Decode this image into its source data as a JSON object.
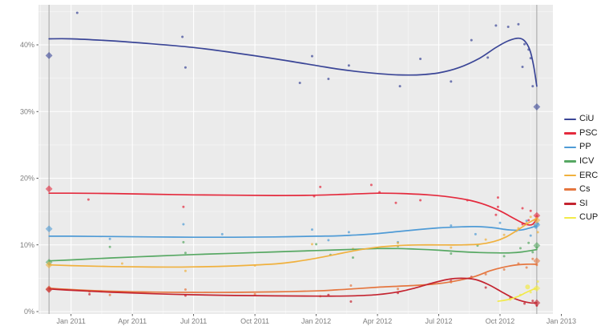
{
  "chart_data": {
    "type": "line",
    "title": "",
    "xlabel": "",
    "ylabel": "",
    "x_axis": {
      "ticks": [
        {
          "label": "Jan 2011",
          "t": 0
        },
        {
          "label": "Apr 2011",
          "t": 3
        },
        {
          "label": "Jul 2011",
          "t": 6
        },
        {
          "label": "Oct 2011",
          "t": 9
        },
        {
          "label": "Jan 2012",
          "t": 12
        },
        {
          "label": "Apr 2012",
          "t": 15
        },
        {
          "label": "Jul 2012",
          "t": 18
        },
        {
          "label": "Oct 2012",
          "t": 21
        },
        {
          "label": "Jan 2013",
          "t": 24
        }
      ],
      "minor_ticks_t": [
        -1.5,
        1.5,
        4.5,
        7.5,
        10.5,
        13.5,
        16.5,
        19.5,
        22.5
      ],
      "range_t": [
        -1.6,
        24.45
      ]
    },
    "y_axis": {
      "ticks": [
        {
          "label": "0%",
          "v": 0
        },
        {
          "label": "10%",
          "v": 10
        },
        {
          "label": "20%",
          "v": 20
        },
        {
          "label": "30%",
          "v": 30
        },
        {
          "label": "40%",
          "v": 40
        }
      ],
      "minor_ticks_v": [
        5,
        15,
        25,
        35,
        45
      ],
      "range_v": [
        -0.4,
        46
      ]
    },
    "elections": [
      {
        "name": "election-2010",
        "t": -1.08,
        "results": {
          "CiU": 38.4,
          "PSC": 18.4,
          "PP": 12.4,
          "ICV": 7.4,
          "ERC": 7.0,
          "Cs": 3.4,
          "SI": 3.3
        }
      },
      {
        "name": "election-2012",
        "t": 22.8,
        "results": {
          "CiU": 30.7,
          "PSC": 14.4,
          "PP": 13.0,
          "ICV": 9.9,
          "ERC": 13.7,
          "Cs": 7.6,
          "SI": 1.3,
          "CUP": 3.5
        }
      }
    ],
    "legend_position": "right",
    "series": [
      {
        "name": "CiU",
        "color": "#3b4697",
        "trend": [
          [
            -1.08,
            40.9
          ],
          [
            0,
            40.9
          ],
          [
            2,
            40.6
          ],
          [
            4,
            40.15
          ],
          [
            6,
            39.6
          ],
          [
            8,
            38.8
          ],
          [
            10,
            37.9
          ],
          [
            12,
            36.9
          ],
          [
            13,
            36.4
          ],
          [
            14,
            36.0
          ],
          [
            15,
            35.7
          ],
          [
            16,
            35.5
          ],
          [
            17,
            35.5
          ],
          [
            18,
            35.8
          ],
          [
            19,
            36.6
          ],
          [
            20,
            38.0
          ],
          [
            20.8,
            39.6
          ],
          [
            21.4,
            40.6
          ],
          [
            21.9,
            41.0
          ],
          [
            22.2,
            40.6
          ],
          [
            22.45,
            39.3
          ],
          [
            22.65,
            36.8
          ],
          [
            22.8,
            33.8
          ]
        ],
        "polls": [
          [
            0.3,
            44.8
          ],
          [
            5.45,
            41.2
          ],
          [
            5.6,
            36.6
          ],
          [
            11.2,
            34.3
          ],
          [
            11.8,
            38.3
          ],
          [
            12.6,
            34.9
          ],
          [
            13.6,
            36.9
          ],
          [
            16.1,
            33.8
          ],
          [
            17.1,
            37.9
          ],
          [
            18.6,
            34.5
          ],
          [
            19.6,
            40.7
          ],
          [
            20.4,
            38.1
          ],
          [
            20.8,
            42.9
          ],
          [
            21.4,
            42.7
          ],
          [
            21.9,
            43.1
          ],
          [
            22.1,
            36.7
          ],
          [
            22.2,
            40.1
          ],
          [
            22.4,
            39.3
          ],
          [
            22.5,
            38.0
          ],
          [
            22.6,
            33.8
          ]
        ]
      },
      {
        "name": "PSC",
        "color": "#e42a3d",
        "trend": [
          [
            -1.08,
            17.75
          ],
          [
            0,
            17.75
          ],
          [
            2,
            17.7
          ],
          [
            4,
            17.6
          ],
          [
            6,
            17.5
          ],
          [
            8,
            17.45
          ],
          [
            10,
            17.4
          ],
          [
            12,
            17.45
          ],
          [
            13.5,
            17.6
          ],
          [
            15,
            17.75
          ],
          [
            16.2,
            17.7
          ],
          [
            17.5,
            17.5
          ],
          [
            18.5,
            17.2
          ],
          [
            19.5,
            16.7
          ],
          [
            20.3,
            16.0
          ],
          [
            21.0,
            15.1
          ],
          [
            21.6,
            14.1
          ],
          [
            22.1,
            13.3
          ],
          [
            22.4,
            13.0
          ],
          [
            22.6,
            13.1
          ],
          [
            22.8,
            13.9
          ]
        ],
        "polls": [
          [
            0.85,
            16.8
          ],
          [
            5.5,
            15.7
          ],
          [
            11.9,
            17.3
          ],
          [
            12.2,
            18.7
          ],
          [
            14.7,
            19.0
          ],
          [
            15.1,
            17.9
          ],
          [
            15.9,
            16.3
          ],
          [
            17.1,
            16.7
          ],
          [
            19.4,
            16.7
          ],
          [
            20.8,
            14.5
          ],
          [
            20.9,
            17.1
          ],
          [
            20.9,
            15.7
          ],
          [
            22.1,
            15.5
          ],
          [
            22.1,
            13.1
          ],
          [
            22.4,
            13.7
          ],
          [
            22.5,
            15.1
          ],
          [
            22.8,
            14.3
          ]
        ]
      },
      {
        "name": "PP",
        "color": "#4f9bd6",
        "trend": [
          [
            -1.08,
            11.3
          ],
          [
            0,
            11.3
          ],
          [
            2,
            11.25
          ],
          [
            4,
            11.2
          ],
          [
            6,
            11.15
          ],
          [
            8,
            11.15
          ],
          [
            10,
            11.2
          ],
          [
            12,
            11.3
          ],
          [
            13,
            11.35
          ],
          [
            14,
            11.5
          ],
          [
            15,
            11.7
          ],
          [
            16,
            12.0
          ],
          [
            17,
            12.3
          ],
          [
            18,
            12.55
          ],
          [
            19,
            12.7
          ],
          [
            19.8,
            12.75
          ],
          [
            20.6,
            12.6
          ],
          [
            21.3,
            12.3
          ],
          [
            21.9,
            12.2
          ],
          [
            22.3,
            12.4
          ],
          [
            22.8,
            12.85
          ]
        ],
        "polls": [
          [
            1.9,
            10.9
          ],
          [
            5.5,
            13.1
          ],
          [
            7.4,
            11.6
          ],
          [
            11.8,
            12.3
          ],
          [
            12.6,
            10.7
          ],
          [
            13.6,
            11.9
          ],
          [
            16.0,
            10.4
          ],
          [
            18.6,
            12.9
          ],
          [
            19.8,
            11.6
          ],
          [
            21.0,
            13.3
          ],
          [
            21.8,
            12.1
          ],
          [
            22.3,
            13.6
          ],
          [
            22.5,
            11.4
          ],
          [
            22.75,
            12.6
          ],
          [
            22.85,
            13.2
          ]
        ]
      },
      {
        "name": "ICV",
        "color": "#57a863",
        "trend": [
          [
            -1.08,
            7.6
          ],
          [
            0,
            7.75
          ],
          [
            2,
            8.05
          ],
          [
            4,
            8.3
          ],
          [
            6,
            8.55
          ],
          [
            8,
            8.75
          ],
          [
            10,
            8.95
          ],
          [
            12,
            9.15
          ],
          [
            13,
            9.25
          ],
          [
            14,
            9.35
          ],
          [
            15,
            9.45
          ],
          [
            16,
            9.45
          ],
          [
            17,
            9.35
          ],
          [
            18,
            9.2
          ],
          [
            19,
            9.0
          ],
          [
            20,
            8.85
          ],
          [
            20.8,
            8.8
          ],
          [
            21.5,
            8.8
          ],
          [
            22.1,
            8.95
          ],
          [
            22.8,
            9.3
          ]
        ],
        "polls": [
          [
            1.9,
            9.7
          ],
          [
            5.5,
            10.4
          ],
          [
            5.6,
            8.8
          ],
          [
            12.0,
            10.1
          ],
          [
            12.7,
            8.5
          ],
          [
            13.8,
            8.1
          ],
          [
            16.0,
            9.8
          ],
          [
            18.6,
            8.7
          ],
          [
            19.9,
            9.9
          ],
          [
            21.2,
            8.3
          ],
          [
            22.0,
            9.5
          ],
          [
            22.4,
            10.3
          ],
          [
            22.6,
            8.9
          ],
          [
            22.8,
            9.6
          ]
        ]
      },
      {
        "name": "ERC",
        "color": "#f0b13e",
        "trend": [
          [
            -1.08,
            7.0
          ],
          [
            0,
            6.9
          ],
          [
            2,
            6.75
          ],
          [
            4,
            6.68
          ],
          [
            6,
            6.7
          ],
          [
            8,
            6.85
          ],
          [
            10,
            7.15
          ],
          [
            11,
            7.5
          ],
          [
            12,
            8.0
          ],
          [
            13,
            8.6
          ],
          [
            14,
            9.2
          ],
          [
            15,
            9.65
          ],
          [
            16,
            9.9
          ],
          [
            17,
            10.0
          ],
          [
            18,
            10.0
          ],
          [
            19,
            10.0
          ],
          [
            20,
            10.1
          ],
          [
            20.7,
            10.5
          ],
          [
            21.3,
            11.2
          ],
          [
            21.9,
            12.3
          ],
          [
            22.4,
            13.3
          ],
          [
            22.8,
            14.0
          ]
        ],
        "polls": [
          [
            2.5,
            7.2
          ],
          [
            5.6,
            6.1
          ],
          [
            9.0,
            6.9
          ],
          [
            11.8,
            10.1
          ],
          [
            13.8,
            9.4
          ],
          [
            16.0,
            10.3
          ],
          [
            18.6,
            9.6
          ],
          [
            20.3,
            10.8
          ],
          [
            21.2,
            11.5
          ],
          [
            21.9,
            12.5
          ],
          [
            22.3,
            13.3
          ],
          [
            22.5,
            14.2
          ],
          [
            22.7,
            12.9
          ],
          [
            22.85,
            11.9
          ]
        ]
      },
      {
        "name": "Cs",
        "color": "#e5763f",
        "trend": [
          [
            -1.08,
            3.5
          ],
          [
            0,
            3.3
          ],
          [
            2,
            3.05
          ],
          [
            4,
            2.92
          ],
          [
            6,
            2.88
          ],
          [
            8,
            2.88
          ],
          [
            10,
            2.95
          ],
          [
            12,
            3.1
          ],
          [
            13,
            3.25
          ],
          [
            14,
            3.45
          ],
          [
            15,
            3.65
          ],
          [
            16,
            3.8
          ],
          [
            17,
            3.95
          ],
          [
            18,
            4.2
          ],
          [
            19,
            4.7
          ],
          [
            19.8,
            5.3
          ],
          [
            20.5,
            6.1
          ],
          [
            21.1,
            6.6
          ],
          [
            21.7,
            6.95
          ],
          [
            22.3,
            7.1
          ],
          [
            22.8,
            7.1
          ]
        ],
        "polls": [
          [
            0.9,
            3.0
          ],
          [
            1.9,
            2.5
          ],
          [
            5.6,
            3.3
          ],
          [
            9.0,
            2.6
          ],
          [
            12.2,
            2.3
          ],
          [
            13.7,
            3.9
          ],
          [
            16.0,
            3.4
          ],
          [
            18.6,
            4.4
          ],
          [
            20.3,
            5.6
          ],
          [
            21.2,
            6.3
          ],
          [
            21.9,
            7.2
          ],
          [
            22.3,
            6.6
          ],
          [
            22.6,
            7.9
          ],
          [
            22.8,
            7.0
          ]
        ]
      },
      {
        "name": "SI",
        "color": "#c42430",
        "trend": [
          [
            -1.08,
            3.4
          ],
          [
            0,
            3.2
          ],
          [
            2,
            2.9
          ],
          [
            4,
            2.68
          ],
          [
            6,
            2.52
          ],
          [
            8,
            2.42
          ],
          [
            10,
            2.36
          ],
          [
            12,
            2.32
          ],
          [
            13,
            2.32
          ],
          [
            14,
            2.38
          ],
          [
            15,
            2.55
          ],
          [
            16,
            2.95
          ],
          [
            16.8,
            3.5
          ],
          [
            17.6,
            4.2
          ],
          [
            18.4,
            4.8
          ],
          [
            19.1,
            5.0
          ],
          [
            19.8,
            4.8
          ],
          [
            20.4,
            4.1
          ],
          [
            21.0,
            3.1
          ],
          [
            21.6,
            2.1
          ],
          [
            22.1,
            1.55
          ],
          [
            22.5,
            1.3
          ],
          [
            22.8,
            1.3
          ]
        ],
        "polls": [
          [
            0.9,
            2.6
          ],
          [
            5.6,
            2.4
          ],
          [
            12.6,
            2.5
          ],
          [
            13.7,
            1.5
          ],
          [
            16.0,
            2.8
          ],
          [
            18.6,
            4.6
          ],
          [
            19.6,
            5.2
          ],
          [
            20.3,
            3.6
          ],
          [
            21.5,
            2.0
          ],
          [
            22.2,
            1.2
          ],
          [
            22.6,
            1.6
          ],
          [
            22.8,
            0.9
          ]
        ]
      },
      {
        "name": "CUP",
        "color": "#f2ea49",
        "trend": [
          [
            20.9,
            1.55
          ],
          [
            21.4,
            1.8
          ],
          [
            21.9,
            2.3
          ],
          [
            22.3,
            2.9
          ],
          [
            22.6,
            3.3
          ],
          [
            22.8,
            3.5
          ]
        ],
        "polls": [
          [
            21.5,
            1.8
          ],
          [
            22.0,
            2.5
          ],
          [
            22.35,
            3.7,
            3
          ],
          [
            22.5,
            2.9
          ],
          [
            22.7,
            3.4
          ],
          [
            22.85,
            4.5
          ]
        ]
      }
    ],
    "style": {
      "panel_background": "#ebebeb",
      "major_gridline": "#ffffff",
      "minor_gridline": "rgba(255,255,255,0.55)",
      "reference_line": "#a3a3a3",
      "tick_label_color": "#7e7e7e",
      "tick_mark_color": "#333333"
    }
  }
}
